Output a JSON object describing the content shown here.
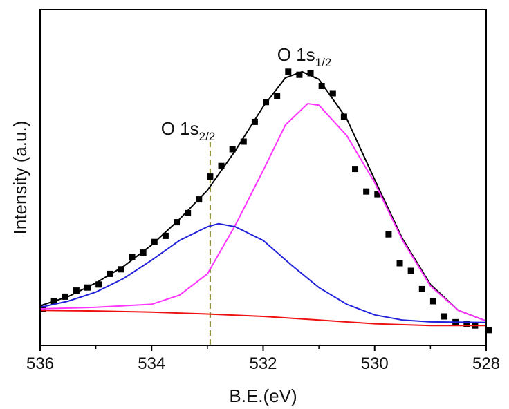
{
  "chart_data": {
    "type": "line",
    "title": "",
    "xlabel": "B.E.(eV)",
    "ylabel": "Intensity (a.u.)",
    "x_reversed": true,
    "xlim": [
      536,
      528
    ],
    "ylim": [
      0,
      1
    ],
    "x_ticks": [
      536,
      534,
      532,
      530,
      528
    ],
    "x_tick_labels": [
      "536",
      "534",
      "532",
      "530",
      "528"
    ],
    "y_tick_labels": [],
    "annotations": [
      {
        "base": "O 1s",
        "sub": "1/2",
        "x": 531.3,
        "y": 0.95
      },
      {
        "base": "O 1s",
        "sub": "2/2",
        "x": 532.95,
        "y": 0.72
      }
    ],
    "reference_line": {
      "x": 532.95,
      "style": "dashed",
      "color": "#8a8a2a"
    },
    "series": [
      {
        "type": "scatter",
        "marker": "square",
        "color": "#000000",
        "points": [
          [
            535.95,
            0.075
          ],
          [
            535.75,
            0.1
          ],
          [
            535.55,
            0.115
          ],
          [
            535.35,
            0.135
          ],
          [
            535.15,
            0.145
          ],
          [
            534.95,
            0.155
          ],
          [
            534.75,
            0.19
          ],
          [
            534.55,
            0.205
          ],
          [
            534.35,
            0.245
          ],
          [
            534.15,
            0.26
          ],
          [
            533.95,
            0.295
          ],
          [
            533.75,
            0.315
          ],
          [
            533.55,
            0.36
          ],
          [
            533.35,
            0.39
          ],
          [
            533.15,
            0.435
          ],
          [
            532.95,
            0.51
          ],
          [
            532.75,
            0.545
          ],
          [
            532.55,
            0.6
          ],
          [
            532.35,
            0.625
          ],
          [
            532.15,
            0.69
          ],
          [
            531.95,
            0.755
          ],
          [
            531.75,
            0.775
          ],
          [
            531.55,
            0.855
          ],
          [
            531.35,
            0.845
          ],
          [
            531.15,
            0.85
          ],
          [
            530.95,
            0.808
          ],
          [
            530.75,
            0.784
          ],
          [
            530.55,
            0.707
          ],
          [
            530.35,
            0.535
          ],
          [
            530.15,
            0.461
          ],
          [
            529.95,
            0.452
          ],
          [
            529.75,
            0.32
          ],
          [
            529.55,
            0.225
          ],
          [
            529.35,
            0.2
          ],
          [
            529.15,
            0.14
          ],
          [
            528.95,
            0.1
          ],
          [
            528.75,
            0.05
          ],
          [
            528.55,
            0.031
          ],
          [
            528.35,
            0.025
          ],
          [
            528.2,
            0.02
          ],
          [
            527.95,
            0.005
          ]
        ]
      },
      {
        "type": "line",
        "color": "#000000",
        "points": [
          [
            536.0,
            0.085
          ],
          [
            535.5,
            0.115
          ],
          [
            535.0,
            0.16
          ],
          [
            534.5,
            0.215
          ],
          [
            534.0,
            0.285
          ],
          [
            533.5,
            0.37
          ],
          [
            533.0,
            0.465
          ],
          [
            532.5,
            0.595
          ],
          [
            532.0,
            0.74
          ],
          [
            531.6,
            0.835
          ],
          [
            531.3,
            0.855
          ],
          [
            531.0,
            0.83
          ],
          [
            530.5,
            0.7
          ],
          [
            530.0,
            0.5
          ],
          [
            529.5,
            0.305
          ],
          [
            529.0,
            0.155
          ],
          [
            528.5,
            0.07
          ],
          [
            528.0,
            0.035
          ]
        ]
      },
      {
        "type": "line",
        "color": "#ff33ff",
        "points": [
          [
            536.0,
            0.075
          ],
          [
            535.0,
            0.08
          ],
          [
            534.0,
            0.09
          ],
          [
            533.5,
            0.12
          ],
          [
            533.0,
            0.19
          ],
          [
            532.5,
            0.35
          ],
          [
            532.0,
            0.53
          ],
          [
            531.6,
            0.68
          ],
          [
            531.2,
            0.75
          ],
          [
            531.0,
            0.745
          ],
          [
            530.5,
            0.645
          ],
          [
            530.0,
            0.49
          ],
          [
            529.5,
            0.3
          ],
          [
            529.0,
            0.15
          ],
          [
            528.5,
            0.07
          ],
          [
            528.0,
            0.035
          ]
        ]
      },
      {
        "type": "line",
        "color": "#2222dd",
        "points": [
          [
            536.0,
            0.08
          ],
          [
            535.5,
            0.1
          ],
          [
            535.0,
            0.13
          ],
          [
            534.5,
            0.175
          ],
          [
            534.0,
            0.235
          ],
          [
            533.5,
            0.3
          ],
          [
            533.0,
            0.345
          ],
          [
            532.8,
            0.355
          ],
          [
            532.5,
            0.345
          ],
          [
            532.0,
            0.3
          ],
          [
            531.5,
            0.22
          ],
          [
            531.0,
            0.145
          ],
          [
            530.5,
            0.09
          ],
          [
            530.0,
            0.055
          ],
          [
            529.5,
            0.038
          ],
          [
            529.0,
            0.032
          ],
          [
            528.0,
            0.03
          ]
        ]
      },
      {
        "type": "line",
        "color": "#ee1111",
        "points": [
          [
            536.0,
            0.07
          ],
          [
            535.0,
            0.068
          ],
          [
            534.0,
            0.064
          ],
          [
            533.0,
            0.058
          ],
          [
            532.0,
            0.05
          ],
          [
            531.0,
            0.038
          ],
          [
            530.0,
            0.026
          ],
          [
            529.0,
            0.02
          ],
          [
            528.0,
            0.02
          ]
        ]
      }
    ]
  }
}
